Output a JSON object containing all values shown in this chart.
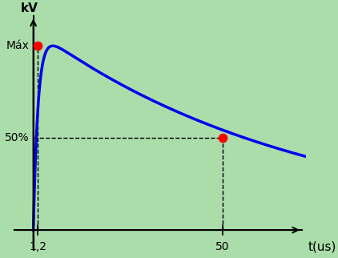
{
  "background_color": "#aaddaa",
  "curve_color": "#0000ee",
  "dot_color": "#ff0000",
  "dashed_color": "#000000",
  "axis_color": "#000000",
  "xlabel": "t(us)",
  "ylabel": "kV",
  "t_peak": 1.2,
  "t_half": 50,
  "x_max_display": 72,
  "y_max_display": 1.18,
  "label_max": "Máx",
  "label_50": "50%",
  "label_t_peak": "1,2",
  "label_t_half": "50",
  "dot_size": 55,
  "curve_linewidth": 2.5,
  "font_size_labels": 10,
  "font_size_axis_label": 11,
  "alpha": 0.014,
  "beta": 0.8
}
